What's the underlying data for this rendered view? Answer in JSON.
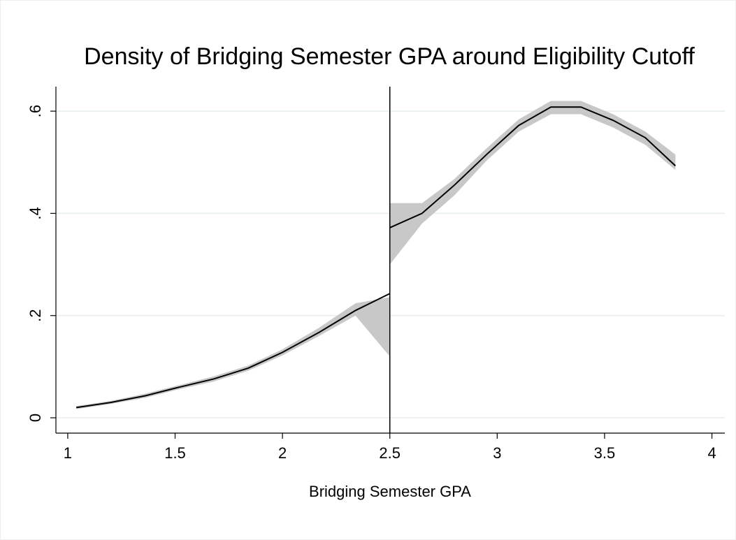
{
  "chart_data": {
    "type": "line",
    "title": "Density of Bridging Semester GPA around Eligibility Cutoff",
    "xlabel": "Bridging Semester GPA",
    "xlim": [
      0.945,
      4.06
    ],
    "xticks": [
      1,
      1.5,
      2,
      2.5,
      3,
      3.5,
      4
    ],
    "ylim": [
      -0.03,
      0.648
    ],
    "yticks": [
      0,
      {
        "value": 0.2,
        "label": ".2"
      },
      {
        "value": 0.4,
        "label": ".4"
      },
      {
        "value": 0.6,
        "label": ".6"
      }
    ],
    "grid": true,
    "vline": 2.5,
    "band_color": "#c8c8c8",
    "series": [
      {
        "color": "#000000",
        "x": [
          1.04,
          1.2,
          1.36,
          1.52,
          1.68,
          1.84,
          2.0,
          2.17,
          2.34,
          2.5
        ],
        "values": [
          0.02,
          0.03,
          0.043,
          0.06,
          0.076,
          0.097,
          0.128,
          0.167,
          0.21,
          0.243
        ],
        "upper": [
          0.023,
          0.033,
          0.047,
          0.064,
          0.081,
          0.102,
          0.134,
          0.176,
          0.224,
          0.236
        ],
        "lower": [
          0.017,
          0.027,
          0.039,
          0.056,
          0.071,
          0.092,
          0.122,
          0.16,
          0.2,
          0.12
        ]
      },
      {
        "color": "#000000",
        "x": [
          2.5,
          2.65,
          2.8,
          2.95,
          3.1,
          3.25,
          3.39,
          3.54,
          3.69,
          3.83
        ],
        "values": [
          0.372,
          0.4,
          0.455,
          0.515,
          0.572,
          0.608,
          0.608,
          0.582,
          0.548,
          0.493
        ],
        "upper": [
          0.42,
          0.42,
          0.467,
          0.527,
          0.584,
          0.62,
          0.62,
          0.594,
          0.56,
          0.515
        ],
        "lower": [
          0.3,
          0.38,
          0.435,
          0.503,
          0.56,
          0.594,
          0.594,
          0.568,
          0.534,
          0.485
        ]
      }
    ]
  }
}
